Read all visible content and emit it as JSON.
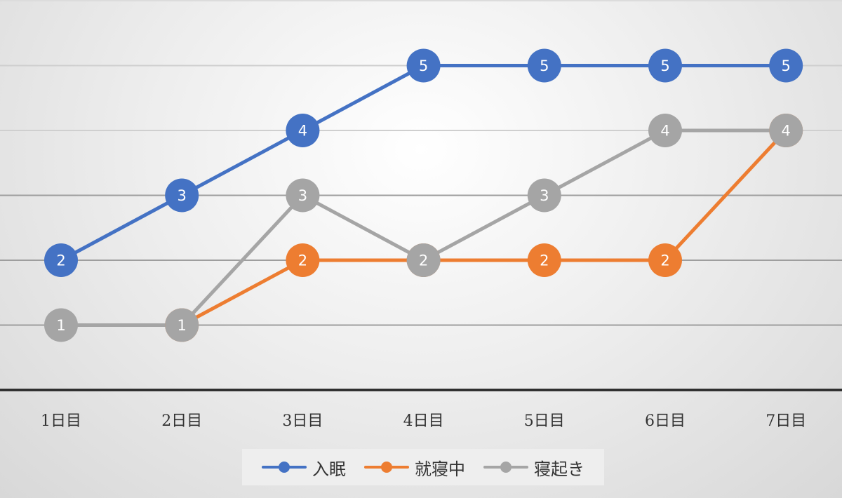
{
  "chart_data": {
    "type": "line",
    "categories": [
      "1日目",
      "2日目",
      "3日目",
      "4日目",
      "5日目",
      "6日目",
      "7日目"
    ],
    "series": [
      {
        "name": "入眠",
        "color": "#4472c4",
        "values": [
          2,
          3,
          4,
          5,
          5,
          5,
          5
        ]
      },
      {
        "name": "就寝中",
        "color": "#ed7d31",
        "values": [
          null,
          1,
          2,
          2,
          2,
          2,
          4
        ]
      },
      {
        "name": "寝起き",
        "color": "#a5a5a5",
        "values": [
          1,
          1,
          3,
          2,
          3,
          4,
          4
        ]
      }
    ],
    "data_labels": true,
    "ylim": [
      0,
      6
    ],
    "grid": true,
    "legend_position": "bottom",
    "title": "",
    "xlabel": "",
    "ylabel": ""
  }
}
